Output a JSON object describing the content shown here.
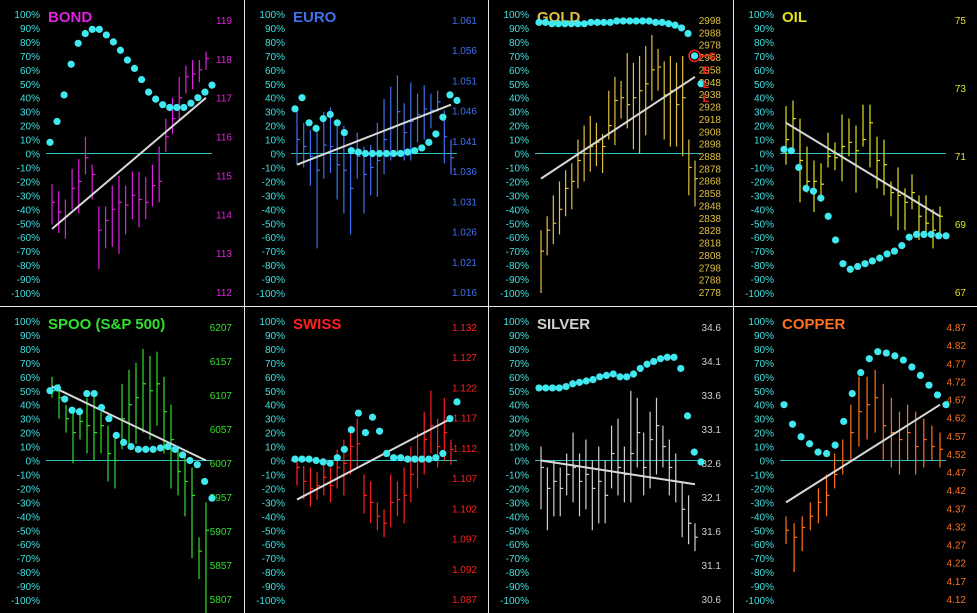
{
  "pct_ticks": [
    "100%",
    "90%",
    "80%",
    "70%",
    "60%",
    "50%",
    "40%",
    "30%",
    "20%",
    "10%",
    "0%",
    "-10%",
    "-20%",
    "-30%",
    "-40%",
    "-50%",
    "-60%",
    "-70%",
    "-80%",
    "-90%",
    "-100%"
  ],
  "chart_data": [
    {
      "type": "line",
      "title": "BOND",
      "title_color": "#e020e0",
      "bar_color": "#e020e0",
      "price_labels": [
        "119",
        "118",
        "117",
        "116",
        "115",
        "114",
        "113",
        "112"
      ],
      "ylim_price": [
        112,
        119
      ],
      "dots": [
        8,
        23,
        42,
        64,
        79,
        86,
        89,
        89,
        85,
        80,
        74,
        67,
        61,
        53,
        44,
        39,
        35,
        33,
        33,
        33,
        36,
        40,
        44,
        49
      ],
      "bars": [
        [
          -51,
          -22,
          -35
        ],
        [
          -57,
          -27,
          -42
        ],
        [
          -61,
          -33,
          -45
        ],
        [
          -40,
          -11,
          -25
        ],
        [
          -43,
          -4,
          -20
        ],
        [
          -15,
          12,
          -3
        ],
        [
          -33,
          -8,
          -15
        ],
        [
          -83,
          -38,
          -55
        ],
        [
          -68,
          -38,
          -48
        ],
        [
          -67,
          -23,
          -40
        ],
        [
          -72,
          -16,
          -35
        ],
        [
          -58,
          -23,
          -37
        ],
        [
          -47,
          -13,
          -30
        ],
        [
          -53,
          -13,
          -33
        ],
        [
          -47,
          -17,
          -35
        ],
        [
          -38,
          -8,
          -23
        ],
        [
          -35,
          5,
          -20
        ],
        [
          1,
          25,
          12
        ],
        [
          14,
          40,
          25
        ],
        [
          24,
          55,
          40
        ],
        [
          43,
          63,
          55
        ],
        [
          46,
          67,
          57
        ],
        [
          51,
          67,
          60
        ],
        [
          60,
          73,
          68
        ]
      ],
      "trend": [
        -54,
        40
      ]
    },
    {
      "type": "line",
      "title": "EURO",
      "title_color": "#4070f0",
      "bar_color": "#4070f0",
      "price_labels": [
        "1.061",
        "1.056",
        "1.051",
        "1.046",
        "1.041",
        "1.036",
        "1.031",
        "1.026",
        "1.021",
        "1.016"
      ],
      "ylim_price": [
        1.016,
        1.061
      ],
      "dots": [
        32,
        40,
        22,
        18,
        25,
        28,
        22,
        15,
        2,
        1,
        0,
        0,
        0,
        0,
        0,
        0,
        1,
        2,
        4,
        8,
        14,
        26,
        42,
        38
      ],
      "bars": [
        [
          -8,
          34,
          10
        ],
        [
          -10,
          22,
          5
        ],
        [
          -23,
          17,
          -2
        ],
        [
          -68,
          19,
          -12
        ],
        [
          -18,
          30,
          6
        ],
        [
          -14,
          33,
          5
        ],
        [
          -33,
          22,
          -8
        ],
        [
          -43,
          20,
          -12
        ],
        [
          -58,
          5,
          -25
        ],
        [
          -18,
          15,
          -2
        ],
        [
          -43,
          5,
          -15
        ],
        [
          -30,
          6,
          -10
        ],
        [
          -31,
          22,
          -5
        ],
        [
          -15,
          39,
          10
        ],
        [
          -5,
          48,
          18
        ],
        [
          -1,
          56,
          30
        ],
        [
          -5,
          36,
          15
        ],
        [
          -5,
          51,
          23
        ],
        [
          8,
          43,
          28
        ],
        [
          10,
          49,
          32
        ],
        [
          18,
          43,
          31
        ],
        [
          30,
          45,
          37
        ],
        [
          -7,
          31,
          12
        ],
        [
          -15,
          10,
          -3
        ]
      ],
      "trend": [
        -8,
        35
      ]
    },
    {
      "type": "line",
      "title": "GOLD",
      "title_color": "#e0c040",
      "bar_color": "#e0c040",
      "price_labels": [
        "2998",
        "2988",
        "2978",
        "2968",
        "2958",
        "2948",
        "2938",
        "2928",
        "2918",
        "2908",
        "2898",
        "2888",
        "2878",
        "2868",
        "2858",
        "2848",
        "2838",
        "2828",
        "2818",
        "2808",
        "2798",
        "2788",
        "2778"
      ],
      "ylim_price": [
        2778,
        2998
      ],
      "dots": [
        94,
        94,
        93,
        93,
        93,
        93,
        93,
        93,
        94,
        94,
        94,
        94,
        95,
        95,
        95,
        95,
        95,
        95,
        94,
        94,
        93,
        92,
        90,
        86,
        70,
        50
      ],
      "bars": [
        [
          -100,
          -55,
          -70
        ],
        [
          -73,
          -45,
          -55
        ],
        [
          -65,
          -30,
          -50
        ],
        [
          -58,
          -20,
          -40
        ],
        [
          -45,
          -12,
          -25
        ],
        [
          -40,
          -7,
          -20
        ],
        [
          -25,
          10,
          -5
        ],
        [
          -20,
          20,
          0
        ],
        [
          -13,
          27,
          5
        ],
        [
          -9,
          22,
          8
        ],
        [
          -14,
          14,
          5
        ],
        [
          10,
          45,
          20
        ],
        [
          6,
          55,
          38
        ],
        [
          25,
          52,
          40
        ],
        [
          18,
          72,
          35
        ],
        [
          3,
          65,
          40
        ],
        [
          0,
          70,
          45
        ],
        [
          13,
          77,
          50
        ],
        [
          38,
          85,
          60
        ],
        [
          45,
          75,
          62
        ],
        [
          10,
          66,
          42
        ],
        [
          5,
          70,
          45
        ],
        [
          5,
          65,
          35
        ],
        [
          -2,
          70,
          40
        ],
        [
          -30,
          10,
          -10
        ],
        [
          -38,
          -5,
          -18
        ]
      ],
      "trend": [
        -18,
        55
      ],
      "annotation": "S E L L",
      "annotation_color": "#ff2020"
    },
    {
      "type": "line",
      "title": "OIL",
      "title_color": "#e0e020",
      "bar_color": "#e0e020",
      "price_labels": [
        "75",
        "73",
        "71",
        "69",
        "67"
      ],
      "ylim_price": [
        67,
        75
      ],
      "dots": [
        3,
        2,
        -10,
        -25,
        -27,
        -32,
        -45,
        -62,
        -79,
        -83,
        -81,
        -79,
        -77,
        -75,
        -72,
        -70,
        -66,
        -60,
        -58,
        -58,
        -58,
        -59,
        -59
      ],
      "bars": [
        [
          -8,
          34,
          10
        ],
        [
          0,
          38,
          25
        ],
        [
          -35,
          25,
          -5
        ],
        [
          -28,
          5,
          -20
        ],
        [
          -42,
          -5,
          -20
        ],
        [
          -30,
          -7,
          -22
        ],
        [
          -10,
          15,
          -2
        ],
        [
          -12,
          8,
          -3
        ],
        [
          -20,
          28,
          5
        ],
        [
          -2,
          25,
          8
        ],
        [
          -28,
          20,
          2
        ],
        [
          5,
          35,
          10
        ],
        [
          -10,
          35,
          22
        ],
        [
          -25,
          12,
          -5
        ],
        [
          -30,
          10,
          -8
        ],
        [
          -45,
          -20,
          -28
        ],
        [
          -55,
          -10,
          -30
        ],
        [
          -55,
          -25,
          -35
        ],
        [
          -40,
          -15,
          -28
        ],
        [
          -62,
          -30,
          -45
        ],
        [
          -60,
          -30,
          -50
        ],
        [
          -68,
          -40,
          -55
        ],
        [
          -60,
          -38,
          -45
        ]
      ],
      "trend": [
        22,
        -45
      ]
    },
    {
      "type": "line",
      "title": "SPOO (S&P 500)",
      "title_color": "#30e030",
      "bar_color": "#30e030",
      "price_labels": [
        "6207",
        "6157",
        "6107",
        "6057",
        "6007",
        "5957",
        "5907",
        "5857",
        "5807"
      ],
      "ylim_price": [
        5807,
        6207
      ],
      "dots": [
        50,
        52,
        44,
        36,
        35,
        48,
        48,
        38,
        30,
        18,
        13,
        10,
        8,
        8,
        8,
        9,
        10,
        8,
        4,
        0,
        -3,
        -15,
        -27
      ],
      "bars": [
        [
          45,
          60,
          50
        ],
        [
          30,
          55,
          45
        ],
        [
          20,
          40,
          30
        ],
        [
          -2,
          35,
          20
        ],
        [
          15,
          38,
          28
        ],
        [
          5,
          45,
          25
        ],
        [
          0,
          50,
          20
        ],
        [
          5,
          35,
          25
        ],
        [
          -15,
          25,
          5
        ],
        [
          -20,
          18,
          0
        ],
        [
          8,
          55,
          30
        ],
        [
          10,
          65,
          40
        ],
        [
          12,
          70,
          45
        ],
        [
          20,
          80,
          55
        ],
        [
          15,
          75,
          50
        ],
        [
          25,
          78,
          55
        ],
        [
          5,
          60,
          35
        ],
        [
          -20,
          40,
          15
        ],
        [
          -25,
          10,
          -8
        ],
        [
          -40,
          5,
          -15
        ],
        [
          -70,
          -5,
          -25
        ],
        [
          -85,
          -55,
          -65
        ],
        [
          -110,
          -30,
          -50
        ]
      ],
      "trend": [
        53,
        0
      ]
    },
    {
      "type": "line",
      "title": "SWISS",
      "title_color": "#ff2020",
      "bar_color": "#ff2020",
      "price_labels": [
        "1.132",
        "1.127",
        "1.122",
        "1.117",
        "1.112",
        "1.107",
        "1.102",
        "1.097",
        "1.092",
        "1.087"
      ],
      "ylim_price": [
        1.087,
        1.132
      ],
      "dots": [
        1,
        1,
        1,
        0,
        -1,
        -2,
        2,
        8,
        22,
        34,
        20,
        31,
        21,
        5,
        2,
        2,
        1,
        1,
        1,
        1,
        2,
        5,
        30,
        42
      ],
      "bars": [
        [
          -18,
          0,
          -5
        ],
        [
          -28,
          -4,
          -15
        ],
        [
          -33,
          -5,
          -20
        ],
        [
          -28,
          -8,
          -18
        ],
        [
          -25,
          0,
          -12
        ],
        [
          -30,
          -5,
          -18
        ],
        [
          -20,
          8,
          -5
        ],
        [
          -25,
          15,
          -2
        ],
        [
          -10,
          25,
          10
        ],
        [
          -5,
          30,
          12
        ],
        [
          -38,
          -10,
          -25
        ],
        [
          -45,
          -15,
          -30
        ],
        [
          -50,
          -30,
          -40
        ],
        [
          -55,
          -35,
          -45
        ],
        [
          -48,
          -10,
          -30
        ],
        [
          -40,
          -15,
          -28
        ],
        [
          -45,
          -5,
          -25
        ],
        [
          -30,
          10,
          -10
        ],
        [
          -20,
          20,
          0
        ],
        [
          -10,
          35,
          15
        ],
        [
          5,
          50,
          25
        ],
        [
          -5,
          30,
          10
        ],
        [
          0,
          45,
          20
        ],
        [
          -3,
          15,
          8
        ]
      ],
      "trend": [
        -28,
        30
      ]
    },
    {
      "type": "line",
      "title": "SILVER",
      "title_color": "#d0d0d0",
      "bar_color": "#d0d0d0",
      "price_labels": [
        "34.6",
        "34.1",
        "33.6",
        "33.1",
        "32.6",
        "32.1",
        "31.6",
        "31.1",
        "30.6"
      ],
      "ylim_price": [
        30.6,
        34.6
      ],
      "dots": [
        52,
        52,
        52,
        52,
        53,
        55,
        56,
        57,
        58,
        60,
        61,
        62,
        60,
        60,
        62,
        66,
        69,
        71,
        73,
        74,
        74,
        66,
        32,
        6,
        -1
      ],
      "bars": [
        [
          -35,
          10,
          -5
        ],
        [
          -50,
          -5,
          -20
        ],
        [
          -40,
          0,
          -15
        ],
        [
          -40,
          -5,
          -20
        ],
        [
          -25,
          5,
          -10
        ],
        [
          -30,
          20,
          -5
        ],
        [
          -40,
          5,
          -15
        ],
        [
          -35,
          15,
          -10
        ],
        [
          -50,
          0,
          -20
        ],
        [
          -45,
          10,
          -15
        ],
        [
          -45,
          0,
          -25
        ],
        [
          -20,
          25,
          5
        ],
        [
          -25,
          30,
          -5
        ],
        [
          -30,
          10,
          -10
        ],
        [
          -30,
          50,
          5
        ],
        [
          -5,
          45,
          20
        ],
        [
          -25,
          20,
          -5
        ],
        [
          -20,
          35,
          15
        ],
        [
          -10,
          45,
          25
        ],
        [
          -5,
          25,
          10
        ],
        [
          -25,
          15,
          -5
        ],
        [
          -30,
          5,
          -15
        ],
        [
          -55,
          -15,
          -35
        ],
        [
          -60,
          -25,
          -45
        ],
        [
          -65,
          -45,
          -55
        ]
      ],
      "trend": [
        0,
        -17
      ]
    },
    {
      "type": "line",
      "title": "COPPER",
      "title_color": "#ff7020",
      "bar_color": "#ff7020",
      "price_labels": [
        "4.87",
        "4.82",
        "4.77",
        "4.72",
        "4.67",
        "4.62",
        "4.57",
        "4.52",
        "4.47",
        "4.42",
        "4.37",
        "4.32",
        "4.27",
        "4.22",
        "4.17",
        "4.12"
      ],
      "ylim_price": [
        4.12,
        4.87
      ],
      "dots": [
        40,
        26,
        17,
        12,
        6,
        5,
        11,
        28,
        48,
        63,
        73,
        78,
        77,
        75,
        72,
        67,
        61,
        54,
        47,
        40
      ],
      "bars": [
        [
          -60,
          -40,
          -50
        ],
        [
          -80,
          -45,
          -55
        ],
        [
          -65,
          -40,
          -48
        ],
        [
          -50,
          -30,
          -40
        ],
        [
          -45,
          -20,
          -30
        ],
        [
          -40,
          -10,
          -25
        ],
        [
          -20,
          5,
          -10
        ],
        [
          -10,
          15,
          0
        ],
        [
          0,
          40,
          20
        ],
        [
          10,
          60,
          35
        ],
        [
          15,
          60,
          40
        ],
        [
          20,
          65,
          45
        ],
        [
          0,
          55,
          25
        ],
        [
          -5,
          45,
          20
        ],
        [
          -10,
          35,
          15
        ],
        [
          0,
          40,
          20
        ],
        [
          -10,
          35,
          10
        ],
        [
          -5,
          30,
          15
        ],
        [
          0,
          25,
          10
        ],
        [
          -5,
          20,
          8
        ]
      ],
      "trend": [
        -30,
        40
      ]
    }
  ]
}
